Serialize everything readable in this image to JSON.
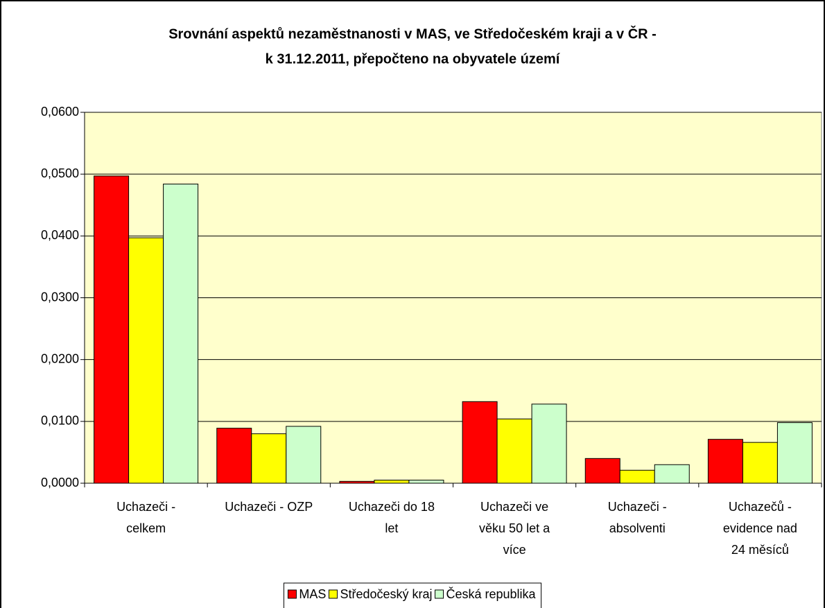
{
  "chart_data": {
    "type": "bar",
    "title": "Srovnání aspektů nezaměstnanosti v MAS, ve Středočeském kraji a v ČR -",
    "subtitle": "k 31.12.2011, přepočteno na obyvatele území",
    "categories": [
      "Uchazeči - celkem",
      "Uchazeči - OZP",
      "Uchazeči do 18 let",
      "Uchazeči ve věku 50 let a více",
      "Uchazeči - absolventi",
      "Uchazečů - evidence nad 24 měsíců"
    ],
    "series": [
      {
        "name": "MAS",
        "color": "#ff0000",
        "values": [
          0.0497,
          0.0089,
          0.0003,
          0.0132,
          0.004,
          0.0071
        ]
      },
      {
        "name": "Středočeský kraj",
        "color": "#ffff00",
        "values": [
          0.0397,
          0.008,
          0.0005,
          0.0104,
          0.0021,
          0.0066
        ]
      },
      {
        "name": "Česká republika",
        "color": "#ccffcc",
        "values": [
          0.0484,
          0.0092,
          0.0005,
          0.0128,
          0.003,
          0.0098
        ]
      }
    ],
    "ylim": [
      0,
      0.06
    ],
    "yticks": [
      {
        "value": 0,
        "label": "0,0000"
      },
      {
        "value": 0.01,
        "label": "0,0100"
      },
      {
        "value": 0.02,
        "label": "0,0200"
      },
      {
        "value": 0.03,
        "label": "0,0300"
      },
      {
        "value": 0.04,
        "label": "0,0400"
      },
      {
        "value": 0.05,
        "label": "0,0500"
      },
      {
        "value": 0.06,
        "label": "0,0600"
      }
    ],
    "grid": true,
    "legend": "bottom",
    "plot_background": "#ffffcc"
  }
}
